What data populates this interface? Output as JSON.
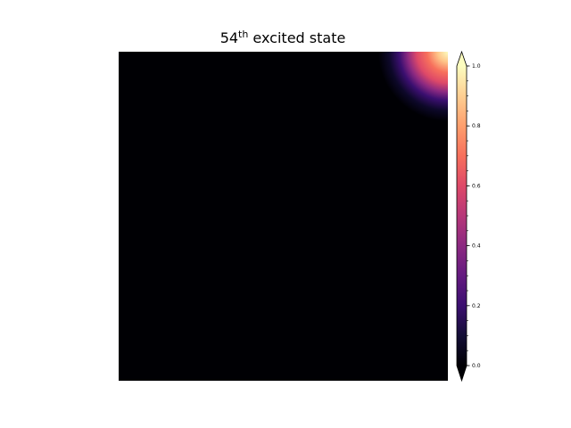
{
  "chart_data": {
    "type": "heatmap",
    "title": {
      "prefix": "54",
      "superscript": "th",
      "suffix": " excited state"
    },
    "xlabel": "",
    "ylabel": "",
    "axes_visible": false,
    "colormap": "magma",
    "colorbar": {
      "range": [
        0.0,
        1.0
      ],
      "extend": "both",
      "ticks": [
        "0.0",
        "0.2",
        "0.4",
        "0.6",
        "0.8",
        "1.0"
      ],
      "tick_values": [
        0.0,
        0.2,
        0.4,
        0.6,
        0.8,
        1.0
      ],
      "minor_tick_step": 0.05
    },
    "field": {
      "description_of_values": "near zero everywhere except a peak of 1.0 in the top-right corner",
      "peak_value": 1.0,
      "peak_location": "top-right corner",
      "background_value": 0.0
    }
  },
  "colors": {
    "background": "#ffffff",
    "axes_frame": "#000000"
  }
}
